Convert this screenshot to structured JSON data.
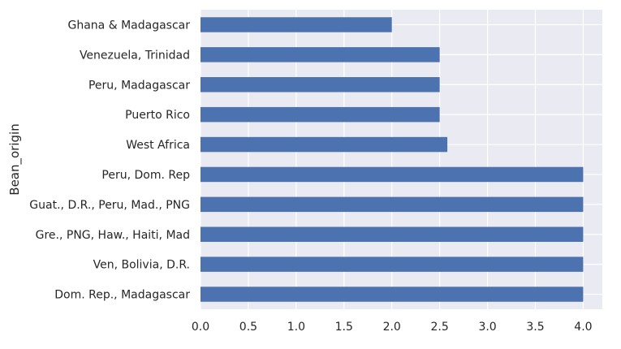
{
  "chart_data": {
    "type": "bar",
    "orientation": "horizontal",
    "ylabel": "Bean_origin",
    "xlabel": "",
    "categories": [
      "Ghana & Madagascar",
      "Venezuela, Trinidad",
      "Peru, Madagascar",
      "Puerto Rico",
      "West Africa",
      "Peru, Dom. Rep",
      "Guat., D.R., Peru, Mad., PNG",
      "Gre., PNG, Haw., Haiti, Mad",
      "Ven, Bolivia, D.R.",
      "Dom. Rep., Madagascar"
    ],
    "values": [
      2.0,
      2.5,
      2.5,
      2.5,
      2.58,
      4.0,
      4.0,
      4.0,
      4.0,
      4.0
    ],
    "xlim": [
      0,
      4.2
    ],
    "xticks": [
      "0.0",
      "0.5",
      "1.0",
      "1.5",
      "2.0",
      "2.5",
      "3.0",
      "3.5",
      "4.0"
    ],
    "grid": true,
    "colors": {
      "bar": "#4c72b0",
      "background": "#eaeaf2",
      "grid": "#ffffff"
    }
  }
}
